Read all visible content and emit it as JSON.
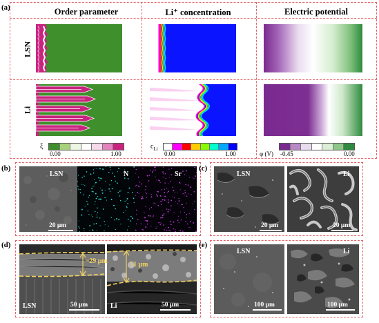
{
  "panel_a": {
    "label": "(a)",
    "columns": [
      "Order parameter",
      "Li⁺ concentration",
      "Electric potential"
    ],
    "rows": [
      "LSN",
      "Li"
    ],
    "colorbars": [
      {
        "symbol": "ξ",
        "min": "0.00",
        "max": "1.00",
        "colors": [
          "#3f8f2d",
          "#a9d27e",
          "#eef6e4",
          "#ffffff",
          "#f6d9ea",
          "#e382bf",
          "#c8247f"
        ]
      },
      {
        "symbol": "c",
        "sub": "Li",
        "min": "0.00",
        "max": "1.00",
        "colors": [
          "#ffffff",
          "#ff00ff",
          "#ff0000",
          "#ffcc00",
          "#88ff00",
          "#00ffcc",
          "#00aaff",
          "#0000ff"
        ]
      },
      {
        "symbol": "φ (V)",
        "min": "-0.45",
        "max": "0.00",
        "colors": [
          "#7a2a8f",
          "#b889c6",
          "#e9dcef",
          "#ffffff",
          "#dcefd6",
          "#8cc788",
          "#2e8a3e"
        ]
      }
    ]
  },
  "panel_b": {
    "label": "(b)",
    "tags": [
      "LSN",
      "N",
      "Sr"
    ],
    "scalebar": "20 μm"
  },
  "panel_c": {
    "label": "(c)",
    "tags": [
      "LSN",
      "Li"
    ],
    "scalebars": [
      "20 μm",
      "20 μm"
    ]
  },
  "panel_d": {
    "label": "(d)",
    "tags": [
      "LSN",
      "Li"
    ],
    "scalebars": [
      "50 μm",
      "50 μm"
    ],
    "thickness": [
      "~29 μm",
      "51 μm"
    ]
  },
  "panel_e": {
    "label": "(e)",
    "tags": [
      "LSN",
      "Li"
    ],
    "scalebars": [
      "100 μm",
      "100 μm"
    ]
  },
  "colors": {
    "border": "#e5656a",
    "green": "#3f8f2d",
    "magenta": "#c8247f",
    "blue": "#0000ff",
    "purple": "#7a2a8f",
    "dim_line": "#f0d060"
  }
}
